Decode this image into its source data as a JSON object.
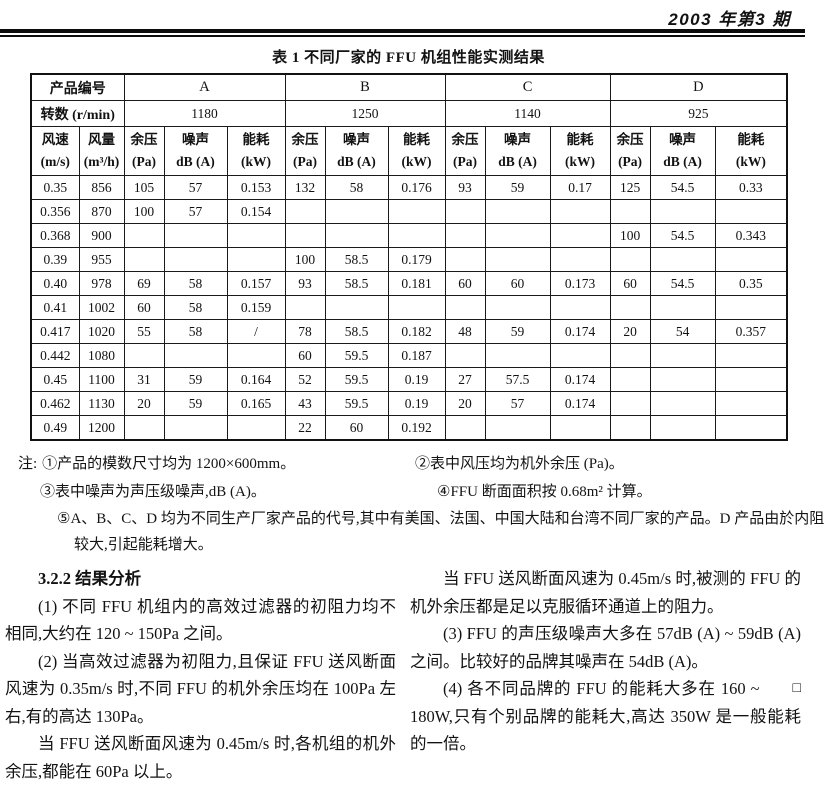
{
  "page_header": {
    "issue": "2003 年第3 期"
  },
  "table": {
    "title": "表 1  不同厂家的 FFU 机组性能实测结果",
    "row1_label": "产品编号",
    "row2_label": "转数 (r/min)",
    "products": [
      {
        "name": "A",
        "rpm": "1180"
      },
      {
        "name": "B",
        "rpm": "1250"
      },
      {
        "name": "C",
        "rpm": "1140"
      },
      {
        "name": "D",
        "rpm": "925"
      }
    ],
    "col_speed": {
      "line1": "风速",
      "line2": "(m/s)"
    },
    "col_volume": {
      "line1": "风量",
      "line2": "(m³/h)"
    },
    "sub_cols": [
      {
        "line1": "余压",
        "line2": "(Pa)"
      },
      {
        "line1": "噪声",
        "line2": "dB (A)"
      },
      {
        "line1": "能耗",
        "line2": "(kW)"
      }
    ],
    "rows": [
      {
        "speed": "0.35",
        "volume": "856",
        "values": [
          "105",
          "57",
          "0.153",
          "132",
          "58",
          "0.176",
          "93",
          "59",
          "0.17",
          "125",
          "54.5",
          "0.33"
        ]
      },
      {
        "speed": "0.356",
        "volume": "870",
        "values": [
          "100",
          "57",
          "0.154",
          "",
          "",
          "",
          "",
          "",
          "",
          "",
          "",
          ""
        ]
      },
      {
        "speed": "0.368",
        "volume": "900",
        "values": [
          "",
          "",
          "",
          "",
          "",
          "",
          "",
          "",
          "",
          "100",
          "54.5",
          "0.343"
        ]
      },
      {
        "speed": "0.39",
        "volume": "955",
        "values": [
          "",
          "",
          "",
          "100",
          "58.5",
          "0.179",
          "",
          "",
          "",
          "",
          "",
          ""
        ]
      },
      {
        "speed": "0.40",
        "volume": "978",
        "values": [
          "69",
          "58",
          "0.157",
          "93",
          "58.5",
          "0.181",
          "60",
          "60",
          "0.173",
          "60",
          "54.5",
          "0.35"
        ]
      },
      {
        "speed": "0.41",
        "volume": "1002",
        "values": [
          "60",
          "58",
          "0.159",
          "",
          "",
          "",
          "",
          "",
          "",
          "",
          "",
          ""
        ]
      },
      {
        "speed": "0.417",
        "volume": "1020",
        "values": [
          "55",
          "58",
          "/",
          "78",
          "58.5",
          "0.182",
          "48",
          "59",
          "0.174",
          "20",
          "54",
          "0.357"
        ]
      },
      {
        "speed": "0.442",
        "volume": "1080",
        "values": [
          "",
          "",
          "",
          "60",
          "59.5",
          "0.187",
          "",
          "",
          "",
          "",
          "",
          ""
        ]
      },
      {
        "speed": "0.45",
        "volume": "1100",
        "values": [
          "31",
          "59",
          "0.164",
          "52",
          "59.5",
          "0.19",
          "27",
          "57.5",
          "0.174",
          "",
          "",
          ""
        ]
      },
      {
        "speed": "0.462",
        "volume": "1130",
        "values": [
          "20",
          "59",
          "0.165",
          "43",
          "59.5",
          "0.19",
          "20",
          "57",
          "0.174",
          "",
          "",
          ""
        ]
      },
      {
        "speed": "0.49",
        "volume": "1200",
        "values": [
          "",
          "",
          "",
          "22",
          "60",
          "0.192",
          "",
          "",
          "",
          "",
          "",
          ""
        ]
      }
    ]
  },
  "notes": {
    "label": "注:",
    "items": [
      "①产品的模数尺寸均为 1200×600mm。",
      "②表中风压均为机外余压 (Pa)。",
      "③表中噪声为声压级噪声,dB (A)。",
      "④FFU 断面面积按 0.68m² 计算。",
      "⑤A、B、C、D 均为不同生产厂家产品的代号,其中有美国、法国、中国大陆和台湾不同厂家的产品。D 产品由於内阻较大,引起能耗增大。"
    ]
  },
  "body": {
    "left_column": {
      "heading": "3.2.2  结果分析",
      "paragraphs": [
        "(1) 不同 FFU 机组内的高效过滤器的初阻力均不相同,大约在 120 ~ 150Pa 之间。",
        "(2) 当高效过滤器为初阻力,且保证 FFU 送风断面风速为 0.35m/s 时,不同 FFU 的机外余压均在 100Pa 左右,有的高达 130Pa。",
        "当 FFU 送风断面风速为 0.45m/s 时,各机组的机外余压,都能在 60Pa 以上。"
      ]
    },
    "right_column": {
      "paragraphs": [
        "当 FFU 送风断面风速为 0.45m/s 时,被测的 FFU 的机外余压都是足以克服循环通道上的阻力。",
        "(3) FFU 的声压级噪声大多在 57dB (A) ~ 59dB (A) 之间。比较好的品牌其噪声在 54dB (A)。",
        "(4) 各不同品牌的 FFU 的能耗大多在 160 ~ 180W,只有个别品牌的能耗大,高达 350W 是一般能耗的一倍。"
      ],
      "end_mark": "□"
    }
  }
}
